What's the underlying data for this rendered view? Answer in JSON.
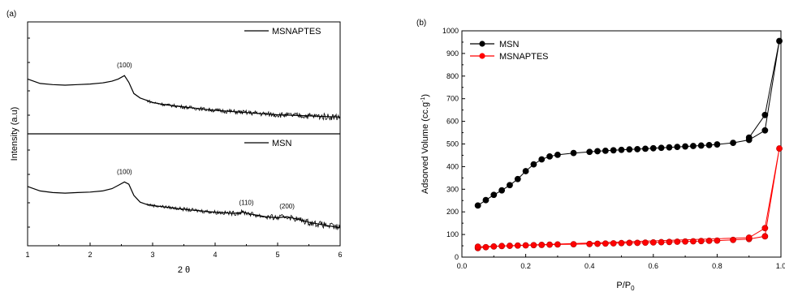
{
  "chart_data": [
    {
      "panel_label": "(a)",
      "type": "line",
      "xlabel": "2 θ",
      "ylabel": "Intensity (a.u)",
      "xlim": [
        1,
        6
      ],
      "xticks": [
        "1",
        "2",
        "3",
        "4",
        "5",
        "6"
      ],
      "yticks_labeled": false,
      "subplots": [
        {
          "legend": "MSNAPTES",
          "ylim": [
            0,
            1
          ],
          "x": [
            1.0,
            1.2,
            1.4,
            1.6,
            1.8,
            2.0,
            2.2,
            2.35,
            2.45,
            2.55,
            2.62,
            2.7,
            2.8,
            2.9,
            3.0,
            3.2,
            3.5,
            4.0,
            4.5,
            5.0,
            5.5,
            6.0
          ],
          "y": [
            0.49,
            0.45,
            0.44,
            0.435,
            0.44,
            0.445,
            0.455,
            0.47,
            0.49,
            0.52,
            0.46,
            0.36,
            0.32,
            0.3,
            0.28,
            0.26,
            0.24,
            0.21,
            0.19,
            0.17,
            0.16,
            0.15
          ],
          "annotations": [
            "(100)"
          ]
        },
        {
          "legend": "MSN",
          "ylim": [
            0,
            1
          ],
          "x": [
            1.0,
            1.2,
            1.4,
            1.6,
            1.8,
            2.0,
            2.2,
            2.35,
            2.45,
            2.55,
            2.62,
            2.7,
            2.8,
            2.9,
            3.0,
            3.3,
            3.6,
            4.0,
            4.3,
            4.45,
            4.6,
            4.8,
            5.0,
            5.15,
            5.3,
            5.5,
            5.8,
            6.0
          ],
          "y": [
            0.53,
            0.49,
            0.475,
            0.47,
            0.475,
            0.48,
            0.49,
            0.51,
            0.54,
            0.57,
            0.55,
            0.45,
            0.39,
            0.37,
            0.36,
            0.34,
            0.32,
            0.3,
            0.29,
            0.3,
            0.28,
            0.26,
            0.25,
            0.26,
            0.24,
            0.21,
            0.18,
            0.16
          ],
          "annotations": [
            "(100)",
            "(110)",
            "(200)"
          ]
        }
      ]
    },
    {
      "panel_label": "(b)",
      "type": "line",
      "xlabel": "P/P",
      "xlabel_subscript": "0",
      "ylabel": "Adsorved Volume (cc.g",
      "ylabel_superscript": "-1",
      "ylabel_suffix": ")",
      "xlim": [
        0.0,
        1.0
      ],
      "ylim": [
        0,
        1000
      ],
      "xticks": [
        "0.0",
        "0.2",
        "0.4",
        "0.6",
        "0.8",
        "1.0"
      ],
      "yticks": [
        "0",
        "100",
        "200",
        "300",
        "400",
        "500",
        "600",
        "700",
        "800",
        "900",
        "1000"
      ],
      "legend_position": "top-left",
      "series": [
        {
          "name": "MSN",
          "color": "#000000",
          "x": [
            0.05,
            0.075,
            0.1,
            0.125,
            0.15,
            0.175,
            0.2,
            0.225,
            0.25,
            0.275,
            0.3,
            0.35,
            0.4,
            0.425,
            0.45,
            0.475,
            0.5,
            0.525,
            0.55,
            0.575,
            0.6,
            0.625,
            0.65,
            0.675,
            0.7,
            0.725,
            0.75,
            0.775,
            0.8,
            0.85,
            0.9,
            0.95,
            0.995,
            0.95,
            0.9
          ],
          "y": [
            228,
            252,
            275,
            295,
            318,
            345,
            380,
            410,
            432,
            445,
            452,
            460,
            465,
            468,
            470,
            472,
            474,
            476,
            477,
            479,
            481,
            483,
            485,
            487,
            489,
            491,
            493,
            495,
            498,
            505,
            518,
            560,
            955,
            628,
            528
          ]
        },
        {
          "name": "MSNAPTES",
          "color": "#ff0000",
          "x": [
            0.05,
            0.075,
            0.1,
            0.125,
            0.15,
            0.175,
            0.2,
            0.225,
            0.25,
            0.275,
            0.3,
            0.35,
            0.4,
            0.425,
            0.45,
            0.475,
            0.5,
            0.525,
            0.55,
            0.575,
            0.6,
            0.625,
            0.65,
            0.675,
            0.7,
            0.725,
            0.75,
            0.775,
            0.8,
            0.85,
            0.9,
            0.95,
            0.995,
            0.95,
            0.9,
            0.05
          ],
          "y": [
            40,
            44,
            47,
            49,
            50,
            51,
            52,
            53,
            54,
            55,
            56,
            57,
            58,
            59,
            60,
            61,
            62,
            63,
            63,
            64,
            65,
            66,
            67,
            68,
            69,
            70,
            71,
            72,
            73,
            76,
            80,
            92,
            480,
            128,
            86,
            46
          ]
        }
      ]
    }
  ]
}
